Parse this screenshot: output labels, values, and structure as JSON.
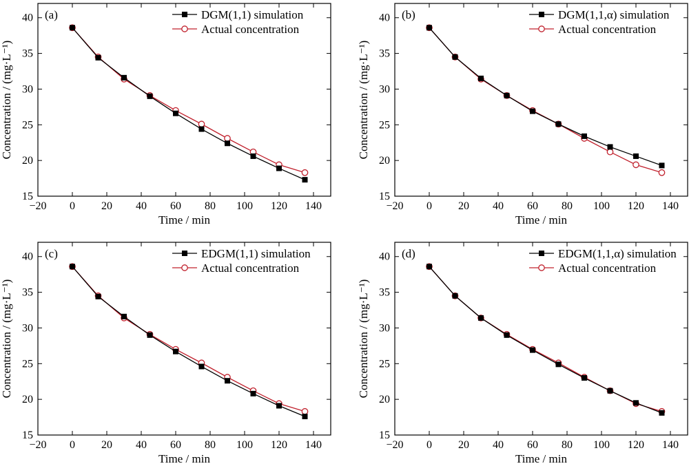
{
  "chart_data": [
    {
      "type": "line",
      "panel_label": "(a)",
      "xlabel": "Time / min",
      "ylabel": "Concentration / (mg·L⁻¹)",
      "xlim": [
        -20,
        150
      ],
      "ylim": [
        15,
        42
      ],
      "xticks": [
        -20,
        0,
        20,
        40,
        60,
        80,
        100,
        120,
        140
      ],
      "yticks": [
        15,
        20,
        25,
        30,
        35,
        40
      ],
      "legend_position": "top-right",
      "x": [
        0,
        15,
        30,
        45,
        60,
        75,
        90,
        105,
        120,
        135
      ],
      "series": [
        {
          "name": "DGM(1,1) simulation",
          "marker": "square",
          "color": "#000000",
          "values": [
            38.6,
            34.4,
            31.6,
            29.0,
            26.6,
            24.4,
            22.4,
            20.6,
            18.9,
            17.3
          ]
        },
        {
          "name": "Actual concentration",
          "marker": "circle",
          "color": "#c0202c",
          "values": [
            38.6,
            34.5,
            31.4,
            29.1,
            27.0,
            25.1,
            23.1,
            21.2,
            19.4,
            18.3
          ]
        }
      ]
    },
    {
      "type": "line",
      "panel_label": "(b)",
      "xlabel": "Time / min",
      "ylabel": "Concentration / (mg·L⁻¹)",
      "xlim": [
        -20,
        150
      ],
      "ylim": [
        15,
        42
      ],
      "xticks": [
        -20,
        0,
        20,
        40,
        60,
        80,
        100,
        120,
        140
      ],
      "yticks": [
        15,
        20,
        25,
        30,
        35,
        40
      ],
      "legend_position": "top-right",
      "x": [
        0,
        15,
        30,
        45,
        60,
        75,
        90,
        105,
        120,
        135
      ],
      "series": [
        {
          "name": "DGM(1,1,α) simulation",
          "marker": "square",
          "color": "#000000",
          "values": [
            38.6,
            34.5,
            31.5,
            29.1,
            26.9,
            25.1,
            23.4,
            21.9,
            20.6,
            19.3
          ]
        },
        {
          "name": "Actual concentration",
          "marker": "circle",
          "color": "#c0202c",
          "values": [
            38.6,
            34.5,
            31.4,
            29.1,
            27.0,
            25.1,
            23.1,
            21.2,
            19.4,
            18.3
          ]
        }
      ]
    },
    {
      "type": "line",
      "panel_label": "(c)",
      "xlabel": "Time / min",
      "ylabel": "Concentration / (mg·L⁻¹)",
      "xlim": [
        -20,
        150
      ],
      "ylim": [
        15,
        42
      ],
      "xticks": [
        -20,
        0,
        20,
        40,
        60,
        80,
        100,
        120,
        140
      ],
      "yticks": [
        15,
        20,
        25,
        30,
        35,
        40
      ],
      "legend_position": "top-right",
      "x": [
        0,
        15,
        30,
        45,
        60,
        75,
        90,
        105,
        120,
        135
      ],
      "series": [
        {
          "name": "EDGM(1,1) simulation",
          "marker": "square",
          "color": "#000000",
          "values": [
            38.6,
            34.4,
            31.6,
            29.0,
            26.7,
            24.6,
            22.6,
            20.8,
            19.1,
            17.6
          ]
        },
        {
          "name": "Actual concentration",
          "marker": "circle",
          "color": "#c0202c",
          "values": [
            38.6,
            34.5,
            31.4,
            29.1,
            27.0,
            25.1,
            23.1,
            21.2,
            19.4,
            18.3
          ]
        }
      ]
    },
    {
      "type": "line",
      "panel_label": "(d)",
      "xlabel": "Time / min",
      "ylabel": "Concentration / (mg·L⁻¹)",
      "xlim": [
        -20,
        150
      ],
      "ylim": [
        15,
        42
      ],
      "xticks": [
        -20,
        0,
        20,
        40,
        60,
        80,
        100,
        120,
        140
      ],
      "yticks": [
        15,
        20,
        25,
        30,
        35,
        40
      ],
      "legend_position": "top-right",
      "x": [
        0,
        15,
        30,
        45,
        60,
        75,
        90,
        105,
        120,
        135
      ],
      "series": [
        {
          "name": "EDGM(1,1,α) simulation",
          "marker": "square",
          "color": "#000000",
          "values": [
            38.6,
            34.5,
            31.4,
            29.0,
            26.9,
            24.9,
            23.0,
            21.2,
            19.5,
            18.1
          ]
        },
        {
          "name": "Actual concentration",
          "marker": "circle",
          "color": "#c0202c",
          "values": [
            38.6,
            34.5,
            31.4,
            29.1,
            27.0,
            25.1,
            23.1,
            21.2,
            19.4,
            18.3
          ]
        }
      ]
    }
  ]
}
